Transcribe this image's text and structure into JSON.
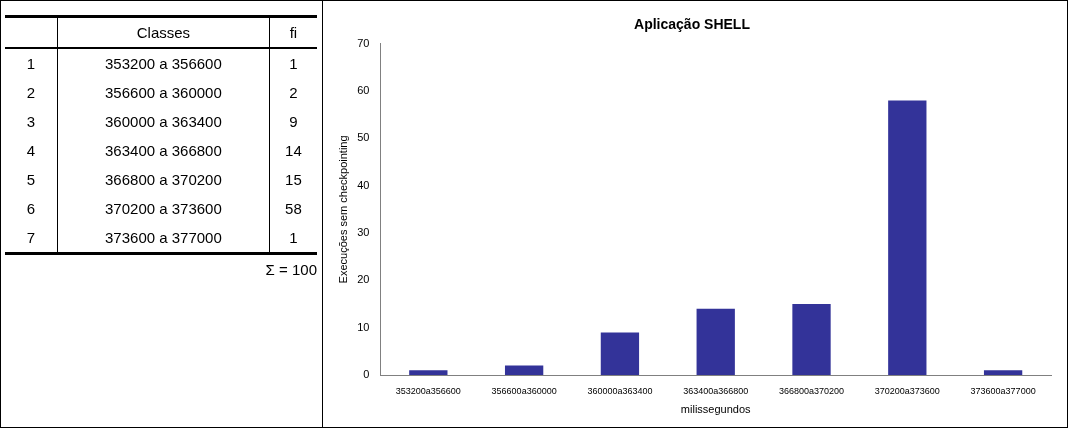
{
  "chart_data": {
    "type": "bar",
    "title": "Aplicação SHELL",
    "xlabel": "milissegundos",
    "ylabel": "Execuções sem checkpointing",
    "categories": [
      "353200a356600",
      "356600a360000",
      "360000a363400",
      "363400a366800",
      "366800a370200",
      "370200a373600",
      "373600a377000"
    ],
    "values": [
      1,
      2,
      9,
      14,
      15,
      58,
      1
    ],
    "color": "#333399",
    "ylim": [
      0,
      70
    ],
    "yticks": [
      0,
      10,
      20,
      30,
      40,
      50,
      60,
      70
    ],
    "grid": false,
    "legend": false,
    "annotations": [
      "Classes",
      "fi",
      "1",
      "353200 a 356600",
      "1",
      "2",
      "356600 a 360000",
      "2",
      "3",
      "360000 a 363400",
      "9",
      "4",
      "363400 a 366800",
      "14",
      "5",
      "366800 a 370200",
      "15",
      "6",
      "370200 a 373600",
      "58",
      "7",
      "373600 a 377000",
      "1",
      "Σ = 100"
    ]
  }
}
